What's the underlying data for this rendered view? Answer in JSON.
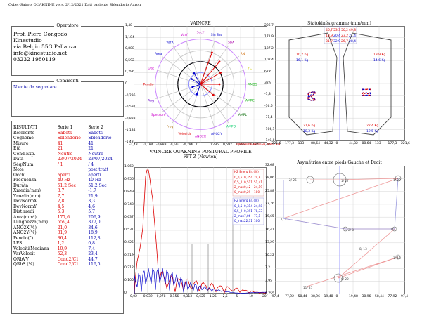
{
  "app_title": "Cyber-Sabots OUAKNINE vers. 2/12/2021  Dati paziente Sblendorio Aaron",
  "operator": {
    "title": "Operatore",
    "lines": [
      "Prof. Piero Congedo",
      "Kinestudio",
      "via Belgio 55G Pallanza",
      "info@kinestudio.net",
      "03232 1980119"
    ]
  },
  "comments": {
    "title": "Commenti",
    "text": "Niente da segnalare"
  },
  "results": {
    "header": [
      "RISULTATI",
      "Serie 1",
      "Serie 2"
    ],
    "rows": [
      [
        "Referente",
        "Sabots",
        "Sabots"
      ],
      [
        "Cognome",
        "Sblendorio",
        "Sblendorio"
      ],
      [
        "Misure",
        "41",
        "41"
      ],
      [
        "Età",
        "21",
        "21"
      ],
      [
        "Cond.Exp.",
        "Neutre",
        "Neutre"
      ],
      [
        "Data",
        "23/07/2024",
        "23/07/2024"
      ],
      [
        "Séq/Num",
        "/ 1",
        "/ 4"
      ],
      [
        "Note",
        "",
        "post tratt"
      ],
      [
        "Occhi",
        "aperti",
        "aperti"
      ],
      [
        "Frequenza",
        "40 Hz",
        "40 Hz"
      ],
      [
        "Durata",
        "51,2 Sec",
        "51,2 Sec"
      ],
      [
        "Xmedia(mm)",
        "8,7",
        "-1,7"
      ],
      [
        "Ymedia(mm)",
        "7,7",
        "21,9"
      ],
      [
        "DevNormX",
        "2,8",
        "3,3"
      ],
      [
        "DevNormY",
        "4,5",
        "4,6"
      ],
      [
        "Dist.medi",
        "5,3",
        "5,7"
      ],
      [
        "Area(mm²)",
        "177,6",
        "206,9"
      ],
      [
        "Lunghezza(mm)",
        "559,4",
        "377,0"
      ],
      [
        "ANO2X(%)",
        "21,0",
        "34,6"
      ],
      [
        "ANO2Y(%)",
        "31,9",
        "18,9"
      ],
      [
        "Pendio(°)",
        "86,4",
        "112,8"
      ],
      [
        "LFS",
        "1,2",
        "0,8"
      ],
      [
        "VelocitàMediana",
        "10,9",
        "7,4"
      ],
      [
        "VarVelocit",
        "52,3",
        "23,4"
      ],
      [
        "QRbVV",
        "Cond2/C1",
        "44,7"
      ],
      [
        "QRbS (%)",
        "Cond2/C1",
        "116,5"
      ]
    ]
  },
  "vaincre": {
    "title": "VAINCRE",
    "yticks": [
      "1,48",
      "1,184",
      "0,888",
      "0,592",
      "0,296",
      "0",
      "-0,296",
      "-0,592",
      "-0,888",
      "-1,184",
      "-1,48"
    ],
    "xticks": [
      "-1,48",
      "-1,184",
      "-0,888",
      "-0,592",
      "-0,296",
      "0",
      "0,296",
      "0,592",
      "0,888",
      "1,184",
      "1,48"
    ],
    "labels": [
      "SecY",
      "Sin Sac",
      "SBX",
      "RN",
      "FC",
      "AMDS",
      "AMPC",
      "AMPL",
      "AMPD",
      "ANO2Y",
      "ANO2X",
      "Velocità",
      "Freq",
      "Spessore",
      "Ang",
      "Pendio",
      "Dist",
      "Area",
      "VarX",
      "VarY"
    ],
    "footnote": "Sblendorio Aaron 21 ANNI 4/4"
  },
  "stabilo": {
    "title": "Statokinésigramme (mm/mm)",
    "yticks": [
      "206,7",
      "171,9",
      "137,2",
      "102,4",
      "67,6",
      "32,9",
      "-1,8",
      "-36,6",
      "-71,4",
      "-106,1",
      "-140,8"
    ],
    "xticks": [
      "-221,6",
      "-177,3",
      "-133",
      "-88,64",
      "-44,32",
      "0",
      "44,32",
      "88,64",
      "133",
      "177,3",
      "221,6"
    ],
    "table_red": [
      [
        "46,7",
        "53,3",
        "50,2",
        "49,8"
      ]
    ],
    "table_row2": [
      [
        "13,9",
        "20,4",
        "23,2",
        "21,4"
      ]
    ],
    "table_row3": [
      [
        "31,7",
        "32,9",
        "26,7",
        "28,4"
      ]
    ],
    "kg_left_top": [
      "10,2 Kg",
      "16,1 Kg"
    ],
    "kg_right_top": [
      "13,9 Kg",
      "14,6 Kg"
    ],
    "kg_left_bot": [
      "21,6 Kg",
      "18,3 Kg"
    ],
    "kg_right_bot": [
      "22,4 Kg",
      "19,5 Kg"
    ]
  },
  "fft": {
    "title1": "VAINCRE  OUAKNINE POSTURAL PROFILE",
    "title2": "FFT Z (Newton)",
    "yticks": [
      "1,062",
      "0,956",
      "0,849",
      "0,743",
      "0,637",
      "0,531",
      "0,425",
      "0,319",
      "0,212",
      "0,106",
      "0"
    ],
    "xticks": [
      "0,02",
      "0,039",
      "0,078",
      "0,156",
      "0,313",
      "0,625",
      "1,25",
      "2,5",
      "5",
      "10",
      "20"
    ],
    "table1_header": "HZ  Energ En.(%)",
    "table1": [
      [
        "0_0,5",
        "0,354",
        "24,8"
      ],
      [
        "0,5_2",
        "0,511",
        "51,41"
      ],
      [
        "2_max",
        "0,42",
        "24,19"
      ],
      [
        "0_max",
        "0,29",
        "100"
      ]
    ],
    "table2_header": "HZ  Energ En.(%)",
    "table2": [
      [
        "0_0,5",
        "0,314",
        "24,98"
      ],
      [
        "0,5_2",
        "0,391",
        "70,33"
      ],
      [
        "2_max",
        "7,06",
        "77,1"
      ],
      [
        "0_max",
        "22,31",
        "100"
      ]
    ]
  },
  "asym": {
    "title": "Asymétries entre pieds Gauche et Droit",
    "yticks": [
      "32,68",
      "29,06",
      "25,88",
      "22,76",
      "19,65",
      "16,41",
      "13,29",
      "10,22",
      "7,2",
      "3,95",
      "0,755"
    ],
    "xticks": [
      "-97,4",
      "-77,92",
      "-58,44",
      "-38,96",
      "-19,48",
      "0",
      "19,48",
      "38,96",
      "58,44",
      "77,92",
      "97,4"
    ],
    "labels": [
      "1/ 27",
      "2/ 25",
      "1/ 29",
      "1/ 3",
      "2/ 8",
      "1/ 11",
      "6/ 22",
      "1/ 18",
      "11/ 27",
      "8/ 13"
    ]
  },
  "colors": {
    "red": "#dd0000",
    "blue": "#0000cc",
    "grid": "#bbbbbb",
    "pink": "#ee9999"
  }
}
